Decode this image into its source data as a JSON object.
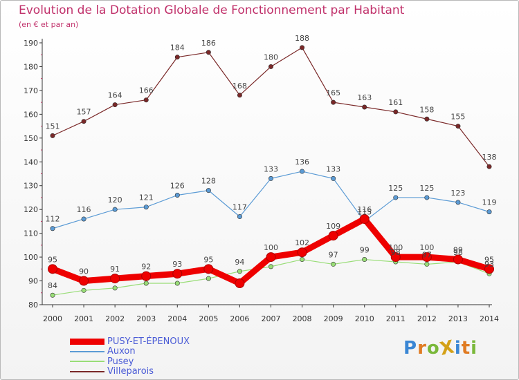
{
  "title": "Evolution de la Dotation Globale de Fonctionnement par Habitant",
  "subtitle": "(en € et par an)",
  "logo": {
    "text": "ProXiti",
    "letters": [
      "P",
      "r",
      "o",
      "X",
      "i",
      "t",
      "i"
    ],
    "colors": [
      "#3a86d4",
      "#e07b22",
      "#7ab83a",
      "#d4a117",
      "#3a86d4",
      "#e07b22",
      "#7ab83a"
    ]
  },
  "chart_data": {
    "type": "line",
    "title": "Evolution de la Dotation Globale de Fonctionnement par Habitant",
    "subtitle": "(en € et par an)",
    "xlabel": "",
    "ylabel": "",
    "categories": [
      "2000",
      "2001",
      "2002",
      "2003",
      "2004",
      "2005",
      "2006",
      "2007",
      "2008",
      "2009",
      "2010",
      "2011",
      "2012",
      "2013",
      "2014"
    ],
    "ylim": [
      80,
      190
    ],
    "yticks": [
      80,
      90,
      100,
      110,
      120,
      130,
      140,
      150,
      160,
      170,
      180,
      190
    ],
    "grid": false,
    "legend_position": "bottom-left",
    "series": [
      {
        "name": "PUSY-ET-ÉPENOUX",
        "color": "#ee0000",
        "values": [
          95,
          90,
          91,
          92,
          93,
          95,
          89,
          100,
          102,
          109,
          116,
          100,
          100,
          99,
          95
        ],
        "labels": [
          95,
          90,
          91,
          92,
          93,
          95,
          null,
          100,
          102,
          109,
          116,
          100,
          100,
          99,
          95
        ],
        "thick": true
      },
      {
        "name": "Auxon",
        "color": "#5b9bd5",
        "values": [
          112,
          116,
          120,
          121,
          126,
          128,
          117,
          133,
          136,
          133,
          115,
          125,
          125,
          123,
          119
        ],
        "labels": [
          112,
          116,
          120,
          121,
          126,
          128,
          117,
          133,
          136,
          133,
          115,
          125,
          125,
          123,
          119
        ]
      },
      {
        "name": "Pusey",
        "color": "#99dd77",
        "values": [
          84,
          86,
          87,
          89,
          89,
          91,
          94,
          96,
          99,
          97,
          99,
          98,
          97,
          98,
          93
        ],
        "labels": [
          84,
          null,
          null,
          null,
          null,
          null,
          94,
          null,
          null,
          97,
          99,
          98,
          97,
          98,
          93
        ]
      },
      {
        "name": "Villeparois",
        "color": "#7a2828",
        "values": [
          151,
          157,
          164,
          166,
          184,
          186,
          168,
          180,
          188,
          165,
          163,
          161,
          158,
          155,
          138
        ],
        "labels": [
          151,
          157,
          164,
          166,
          184,
          186,
          168,
          180,
          188,
          165,
          163,
          161,
          158,
          155,
          138
        ]
      }
    ]
  }
}
